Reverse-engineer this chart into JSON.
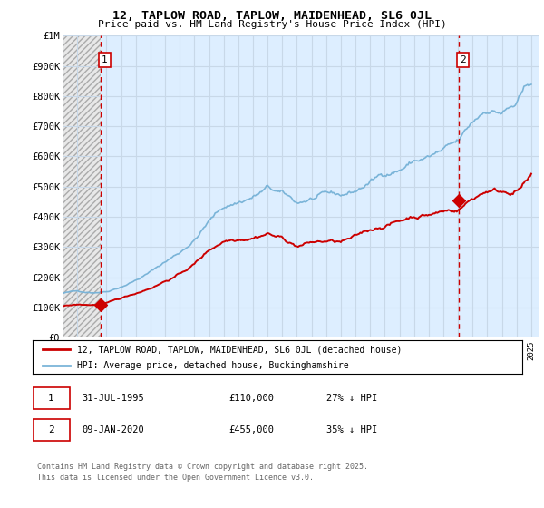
{
  "title": "12, TAPLOW ROAD, TAPLOW, MAIDENHEAD, SL6 0JL",
  "subtitle": "Price paid vs. HM Land Registry's House Price Index (HPI)",
  "hpi_label": "HPI: Average price, detached house, Buckinghamshire",
  "property_label": "12, TAPLOW ROAD, TAPLOW, MAIDENHEAD, SL6 0JL (detached house)",
  "footnote": "Contains HM Land Registry data © Crown copyright and database right 2025.\nThis data is licensed under the Open Government Licence v3.0.",
  "ylim": [
    0,
    1000000
  ],
  "yticks": [
    0,
    100000,
    200000,
    300000,
    400000,
    500000,
    600000,
    700000,
    800000,
    900000,
    1000000
  ],
  "ytick_labels": [
    "£0",
    "£100K",
    "£200K",
    "£300K",
    "£400K",
    "£500K",
    "£600K",
    "£700K",
    "£800K",
    "£900K",
    "£1M"
  ],
  "point1_x": 1995.58,
  "point1_y": 110000,
  "point2_x": 2020.03,
  "point2_y": 455000,
  "vline1_x": 1995.58,
  "vline2_x": 2020.03,
  "hpi_color": "#7ab4d8",
  "property_color": "#cc0000",
  "vline_color": "#cc0000",
  "panel_bg": "#ddeeff",
  "hatch_bg": "#e0e0e0",
  "grid_color": "#c8d8e8",
  "xlim_left": 1993.0,
  "xlim_right": 2025.5
}
